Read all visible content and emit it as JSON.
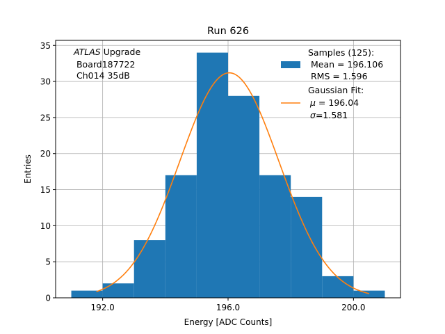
{
  "chart_data": {
    "type": "bar",
    "title": "Run 626",
    "xlabel": "Energy [ADC Counts]",
    "ylabel": "Entries",
    "xlim": [
      190.5,
      201.5
    ],
    "ylim": [
      0,
      35.7
    ],
    "xticks": [
      192.0,
      196.0,
      200.0
    ],
    "xtick_labels": [
      "192.0",
      "196.0",
      "200.0"
    ],
    "yticks": [
      0,
      5,
      10,
      15,
      20,
      25,
      30,
      35
    ],
    "ytick_labels": [
      "0",
      "5",
      "10",
      "15",
      "20",
      "25",
      "30",
      "35"
    ],
    "grid": true,
    "bins": [
      {
        "x0": 191,
        "x1": 192,
        "count": 1
      },
      {
        "x0": 192,
        "x1": 193,
        "count": 2
      },
      {
        "x0": 193,
        "x1": 194,
        "count": 8
      },
      {
        "x0": 194,
        "x1": 195,
        "count": 17
      },
      {
        "x0": 195,
        "x1": 196,
        "count": 34
      },
      {
        "x0": 196,
        "x1": 197,
        "count": 28
      },
      {
        "x0": 197,
        "x1": 198,
        "count": 17
      },
      {
        "x0": 198,
        "x1": 199,
        "count": 14
      },
      {
        "x0": 199,
        "x1": 200,
        "count": 3
      },
      {
        "x0": 200,
        "x1": 201,
        "count": 1
      }
    ],
    "fit": {
      "mu": 196.04,
      "sigma": 1.581,
      "amplitude": 31.2,
      "x_range": [
        191.8,
        200.5
      ]
    },
    "annotation": {
      "line1_italic": "ATLAS",
      "line1_rest": " Upgrade",
      "line2": " Board187722",
      "line3": " Ch014 35dB"
    },
    "legend": {
      "placement": "top-right",
      "samples": {
        "line1": "Samples (125):",
        "line2": " Mean = 196.106",
        "line3": " RMS = 1.596"
      },
      "fit": {
        "line1": "Gaussian Fit:",
        "line2_sym": "μ",
        "line2_rest": " = 196.04",
        "line3_sym": "σ",
        "line3_rest": "=1.581"
      }
    },
    "colors": {
      "bars": "#1f77b4",
      "fit": "#ff7f0e",
      "grid": "#b0b0b0"
    }
  }
}
